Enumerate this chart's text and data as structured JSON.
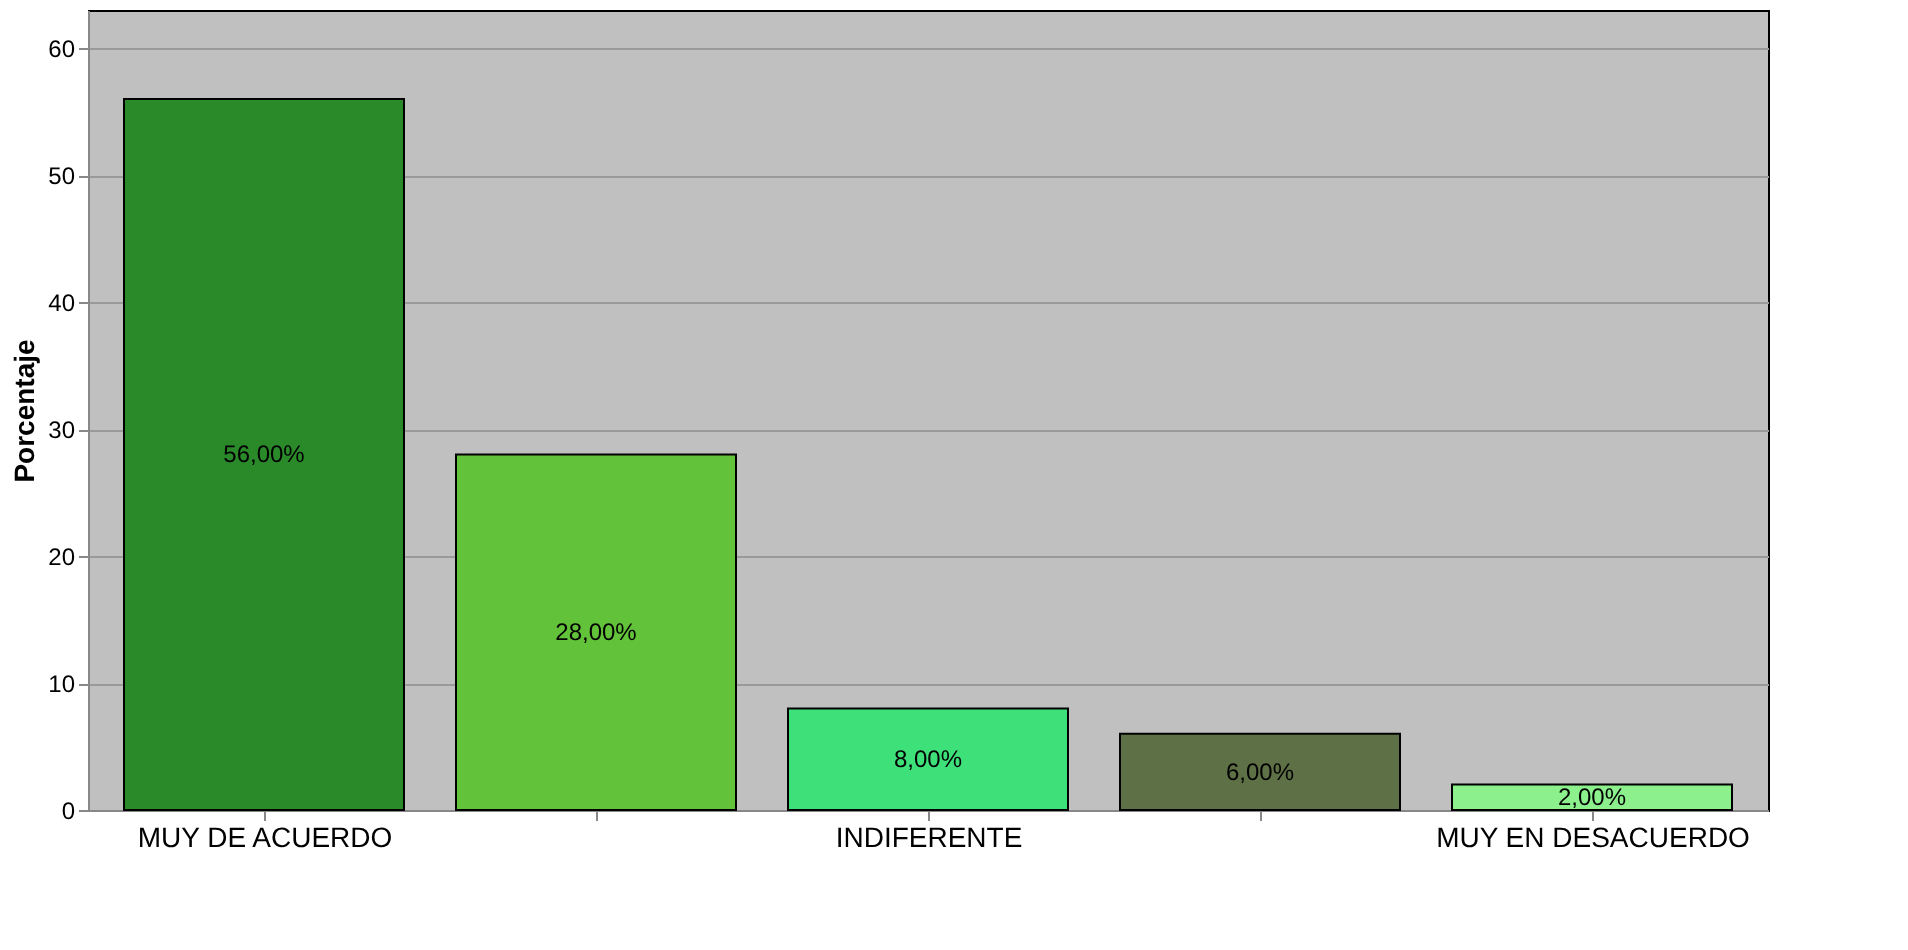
{
  "chart_data": {
    "type": "bar",
    "ylabel": "Porcentaje",
    "categories": [
      "MUY DE ACUERDO",
      null,
      "INDIFERENTE",
      null,
      "MUY EN DESACUERDO"
    ],
    "values": [
      56,
      28,
      8,
      6,
      2
    ],
    "value_labels": [
      "56,00%",
      "28,00%",
      "8,00%",
      "6,00%",
      "2,00%"
    ],
    "colors": [
      "#2a8a2a",
      "#62c23a",
      "#3ee07a",
      "#5e7045",
      "#8cf08c"
    ],
    "ylim": [
      0,
      63
    ],
    "yticks": [
      0,
      10,
      20,
      30,
      40,
      50,
      60
    ],
    "grid": "y"
  }
}
